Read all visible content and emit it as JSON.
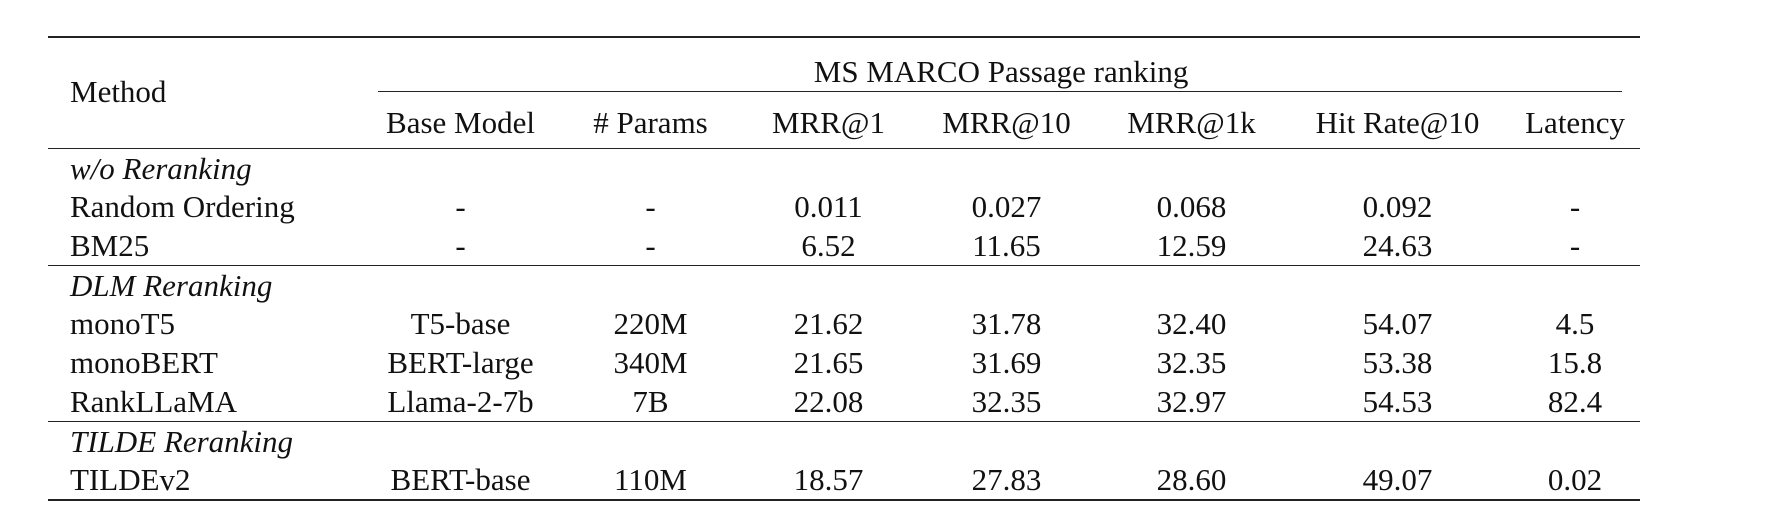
{
  "table": {
    "method_header": "Method",
    "group_title": "MS MARCO Passage ranking",
    "columns": [
      "Base Model",
      "# Params",
      "MRR@1",
      "MRR@10",
      "MRR@1k",
      "Hit Rate@10",
      "Latency"
    ],
    "sections": [
      {
        "title": "w/o Reranking",
        "rows": [
          {
            "method": "Random Ordering",
            "values": [
              "-",
              "-",
              "0.011",
              "0.027",
              "0.068",
              "0.092",
              "-"
            ],
            "bold": []
          },
          {
            "method": "BM25",
            "values": [
              "-",
              "-",
              "6.52",
              "11.65",
              "12.59",
              "24.63",
              "-"
            ],
            "bold": []
          }
        ]
      },
      {
        "title": "DLM Reranking",
        "rows": [
          {
            "method": "monoT5",
            "values": [
              "T5-base",
              "220M",
              "21.62",
              "31.78",
              "32.40",
              "54.07",
              "4.5"
            ],
            "bold": [
              6
            ]
          },
          {
            "method": "monoBERT",
            "values": [
              "BERT-large",
              "340M",
              "21.65",
              "31.69",
              "32.35",
              "53.38",
              "15.8"
            ],
            "bold": []
          },
          {
            "method": "RankLLaMA",
            "values": [
              "Llama-2-7b",
              "7B",
              "22.08",
              "32.35",
              "32.97",
              "54.53",
              "82.4"
            ],
            "bold": [
              2,
              3,
              4,
              5
            ]
          }
        ]
      },
      {
        "title": "TILDE Reranking",
        "rows": [
          {
            "method": "TILDEv2",
            "values": [
              "BERT-base",
              "110M",
              "18.57",
              "27.83",
              "28.60",
              "49.07",
              "0.02"
            ],
            "bold": [
              6
            ]
          }
        ]
      }
    ]
  }
}
